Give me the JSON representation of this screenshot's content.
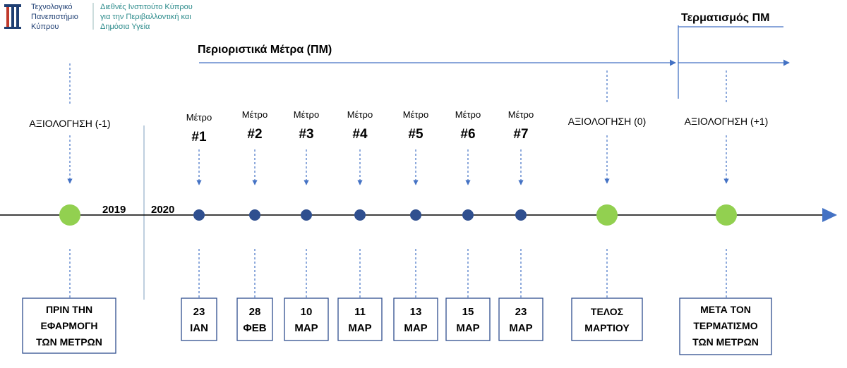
{
  "logo": {
    "tut_lines": [
      "Τεχνολογικό",
      "Πανεπιστήμιο",
      "Κύπρου"
    ],
    "institute_lines": [
      "Διεθνές Ινστιτούτο Κύπρου",
      "για την Περιβαλλοντική και",
      "Δημόσια Υγεία"
    ]
  },
  "headers": {
    "measures": "Περιοριστικά Μέτρα (ΠΜ)",
    "termination": "Τερματισμός ΠΜ"
  },
  "years": {
    "y2019": "2019",
    "y2020": "2020"
  },
  "measures": [
    {
      "label": "Μέτρο",
      "number": "#1",
      "date_lines": [
        "23",
        "ΙΑΝ"
      ]
    },
    {
      "label": "Μέτρο",
      "number": "#2",
      "date_lines": [
        "28",
        "ΦΕΒ"
      ]
    },
    {
      "label": "Μέτρο",
      "number": "#3",
      "date_lines": [
        "10",
        "ΜΑΡ"
      ]
    },
    {
      "label": "Μέτρο",
      "number": "#4",
      "date_lines": [
        "11",
        "ΜΑΡ"
      ]
    },
    {
      "label": "Μέτρο",
      "number": "#5",
      "date_lines": [
        "13",
        "ΜΑΡ"
      ]
    },
    {
      "label": "Μέτρο",
      "number": "#6",
      "date_lines": [
        "15",
        "ΜΑΡ"
      ]
    },
    {
      "label": "Μέτρο",
      "number": "#7",
      "date_lines": [
        "23",
        "ΜΑΡ"
      ]
    }
  ],
  "evaluations": [
    {
      "label": "ΑΞΙΟΛΟΓΗΣΗ (-1)",
      "box_lines": [
        "ΠΡΙΝ ΤΗΝ",
        "ΕΦΑΡΜΟΓΗ",
        "ΤΩΝ ΜΕΤΡΩΝ"
      ]
    },
    {
      "label": "ΑΞΙΟΛΟΓΗΣΗ (0)",
      "box_lines": [
        "ΤΕΛΟΣ",
        "ΜΑΡΤΙΟΥ"
      ]
    },
    {
      "label": "ΑΞΙΟΛΟΓΗΣΗ (+1)",
      "box_lines": [
        "ΜΕΤΑ ΤΟΝ",
        "ΤΕΡΜΑΤΙΣΜΟ",
        "ΤΩΝ ΜΕΤΡΩΝ"
      ]
    }
  ],
  "colors": {
    "accent_blue": "#4472c4",
    "dot_blue": "#2f4f8f",
    "green": "#92d050"
  }
}
